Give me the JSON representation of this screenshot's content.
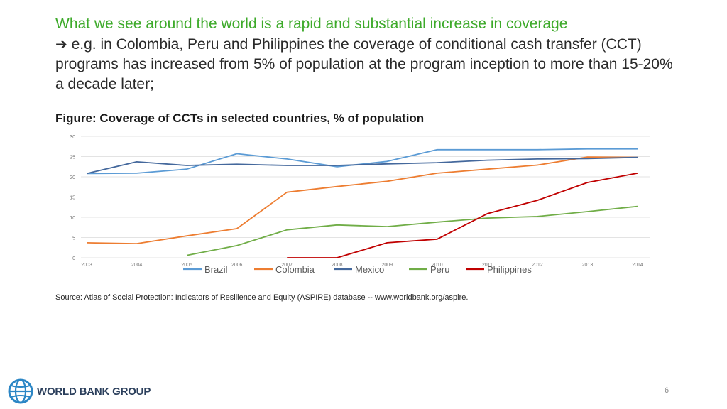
{
  "heading": {
    "highlight": "What we see around the world is a rapid and substantial increase in coverage",
    "arrow_icon": "right-arrow-icon",
    "body": "e.g. in Colombia, Peru and Philippines the coverage of conditional cash transfer (CCT) programs has increased from 5% of population at the program inception to more than 15-20% a decade later;"
  },
  "figure_title": "Figure: Coverage of CCTs in selected countries, % of population",
  "source": "Source: Atlas of Social Protection: Indicators of Resilience and Equity (ASPIRE) database -- www.worldbank.org/aspire.",
  "page_number": "6",
  "logo": {
    "text": "WORLD BANK GROUP",
    "icon": "globe-icon"
  },
  "chart_data": {
    "type": "line",
    "title": "",
    "xlabel": "",
    "ylabel": "",
    "ylim": [
      0,
      30
    ],
    "yticks": [
      "0",
      "5",
      "10",
      "15",
      "20",
      "25",
      "30"
    ],
    "categories": [
      "2003",
      "2004",
      "2005",
      "2006",
      "2007",
      "2008",
      "2009",
      "2010",
      "2011",
      "2012",
      "2013",
      "2014"
    ],
    "grid": true,
    "legend_position": "bottom",
    "series": [
      {
        "name": "Brazil",
        "color": "#5b9bd5",
        "values": [
          20.8,
          20.9,
          21.9,
          25.7,
          24.4,
          22.5,
          23.8,
          26.7,
          26.7,
          26.7,
          26.9,
          26.9
        ]
      },
      {
        "name": "Colombia",
        "color": "#ed7d31",
        "values": [
          3.7,
          3.5,
          5.4,
          7.2,
          16.2,
          17.6,
          18.9,
          20.9,
          21.9,
          22.9,
          24.9,
          24.8
        ]
      },
      {
        "name": "Mexico",
        "color": "#44689c",
        "values": [
          20.8,
          23.7,
          22.8,
          23.1,
          22.8,
          22.8,
          23.2,
          23.5,
          24.1,
          24.4,
          24.5,
          24.8
        ]
      },
      {
        "name": "Peru",
        "color": "#70ad47",
        "values": [
          null,
          null,
          0.6,
          3.0,
          6.9,
          8.1,
          7.7,
          8.8,
          9.8,
          10.2,
          11.4,
          12.7
        ]
      },
      {
        "name": "Philippines",
        "color": "#c00000",
        "values": [
          null,
          null,
          null,
          null,
          0.0,
          0.0,
          3.7,
          4.6,
          10.9,
          14.2,
          18.6,
          20.9
        ]
      }
    ]
  }
}
